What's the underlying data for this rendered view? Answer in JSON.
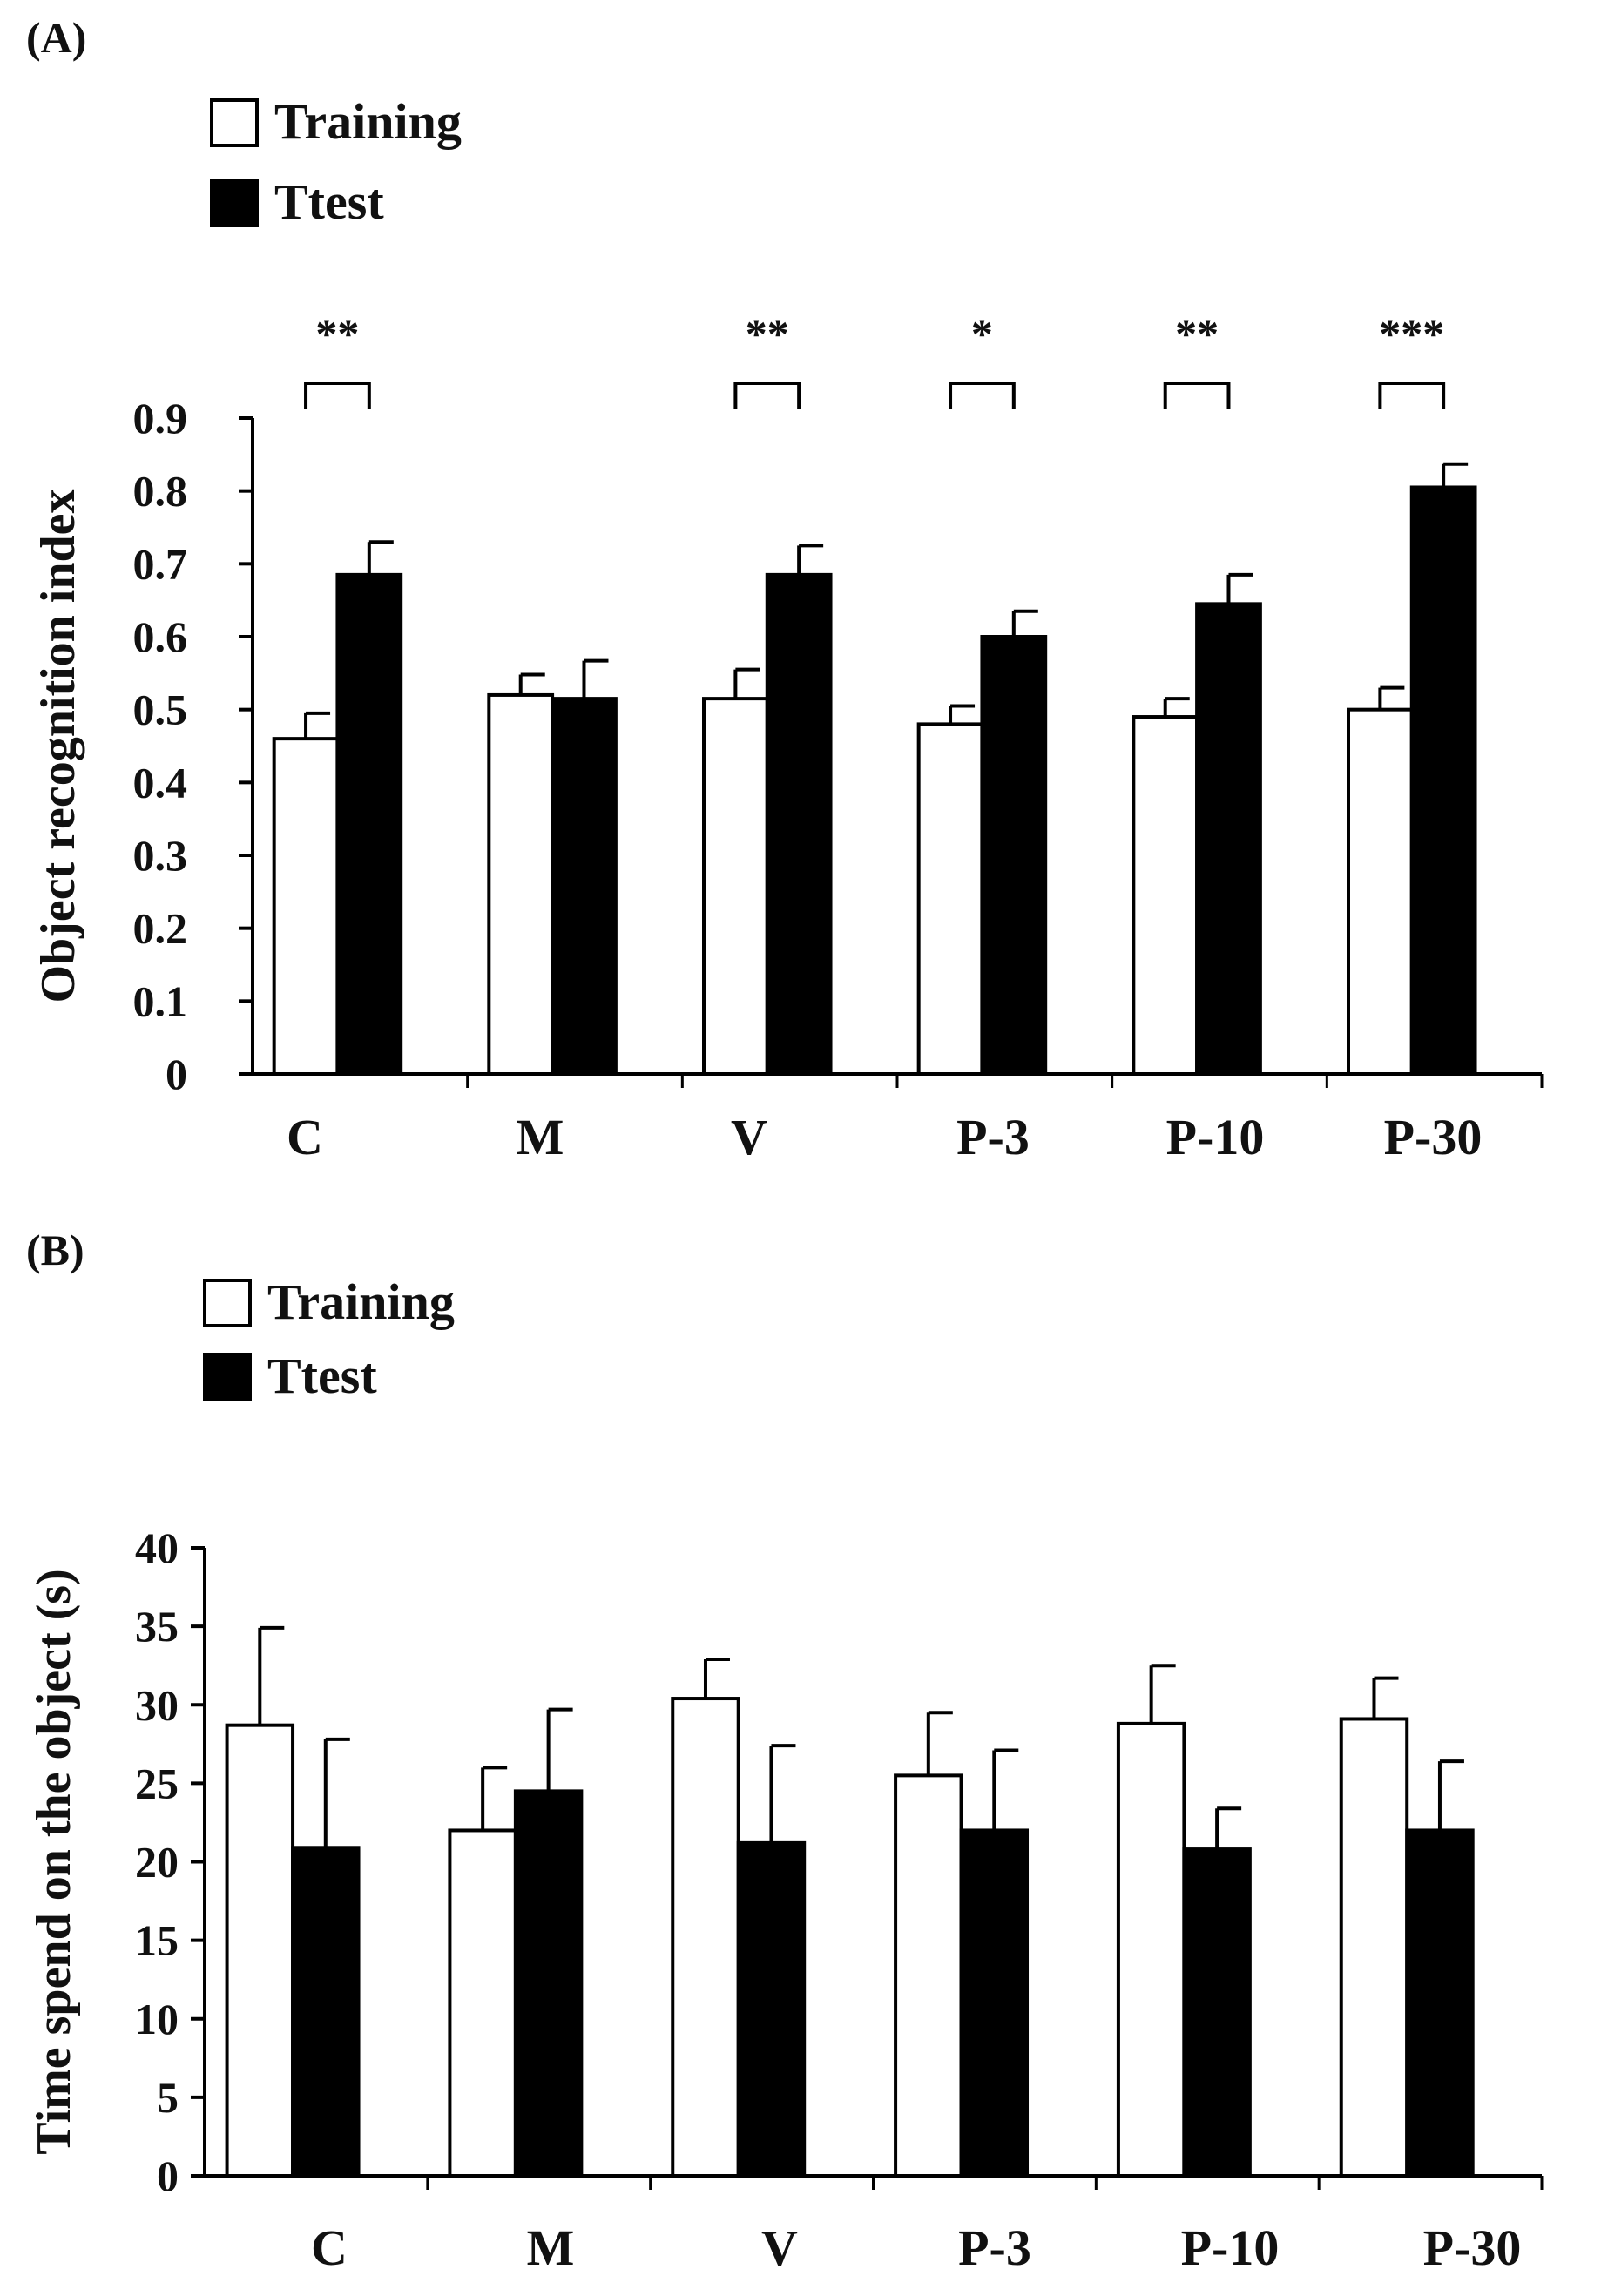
{
  "chart_data": [
    {
      "type": "bar",
      "panel_label": "(A)",
      "ylabel": "Object recognition index",
      "xlabel": "",
      "ylim": [
        0,
        0.9
      ],
      "yticks": [
        "0",
        "0.1",
        "0.2",
        "0.3",
        "0.4",
        "0.5",
        "0.6",
        "0.7",
        "0.8",
        "0.9"
      ],
      "categories": [
        "C",
        "M",
        "V",
        "P-3",
        "P-10",
        "P-30"
      ],
      "legend_position": "top-left",
      "series": [
        {
          "name": "Training",
          "color": "#ffffff",
          "values": [
            0.46,
            0.52,
            0.515,
            0.48,
            0.49,
            0.5
          ],
          "errors": [
            0.035,
            0.028,
            0.04,
            0.025,
            0.025,
            0.03
          ]
        },
        {
          "name": "Ttest",
          "color": "#000000",
          "values": [
            0.685,
            0.515,
            0.685,
            0.6,
            0.645,
            0.805
          ],
          "errors": [
            0.045,
            0.052,
            0.04,
            0.035,
            0.04,
            0.032
          ]
        }
      ],
      "significance": [
        "**",
        "",
        "**",
        "*",
        "**",
        "***"
      ]
    },
    {
      "type": "bar",
      "panel_label": "(B)",
      "ylabel": "Time spend on the object (s)",
      "xlabel": "",
      "ylim": [
        0,
        40
      ],
      "yticks": [
        "0",
        "5",
        "10",
        "15",
        "20",
        "25",
        "30",
        "35",
        "40"
      ],
      "categories": [
        "C",
        "M",
        "V",
        "P-3",
        "P-10",
        "P-30"
      ],
      "legend_position": "top-left",
      "series": [
        {
          "name": "Training",
          "color": "#ffffff",
          "values": [
            28.7,
            22.0,
            30.4,
            25.5,
            28.8,
            29.1
          ],
          "errors": [
            6.2,
            4.0,
            2.5,
            4.0,
            3.7,
            2.6
          ]
        },
        {
          "name": "Ttest",
          "color": "#000000",
          "values": [
            20.9,
            24.5,
            21.2,
            22.0,
            20.8,
            22.0
          ],
          "errors": [
            6.9,
            5.2,
            6.2,
            5.1,
            2.6,
            4.4
          ]
        }
      ],
      "significance": [
        "",
        "",
        "",
        "",
        "",
        ""
      ]
    }
  ]
}
